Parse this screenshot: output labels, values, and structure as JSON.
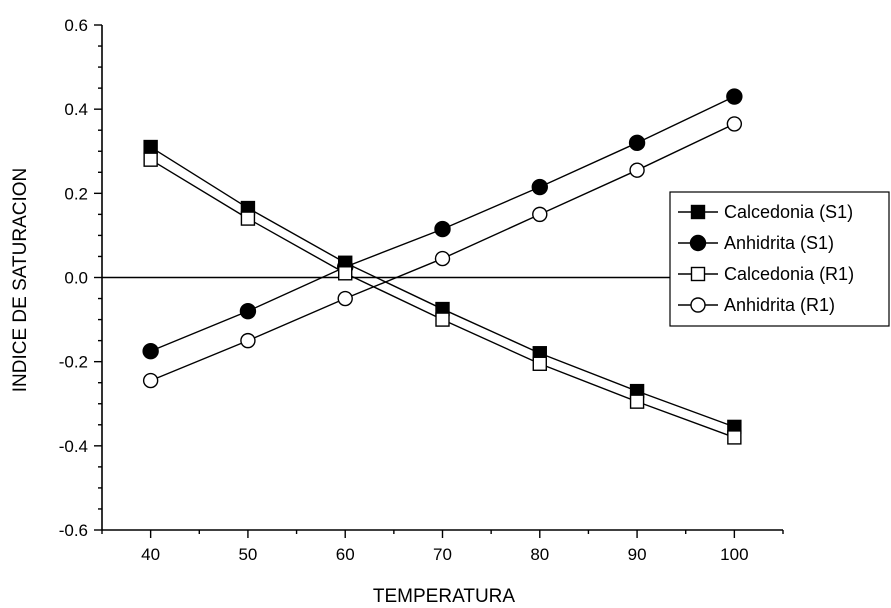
{
  "chart_data": {
    "type": "line",
    "xlabel": "TEMPERATURA",
    "ylabel": "INDICE DE SATURACION",
    "xlim": [
      35,
      105
    ],
    "ylim": [
      -0.6,
      0.6
    ],
    "x_ticks": [
      40,
      50,
      60,
      70,
      80,
      90,
      100
    ],
    "x_tick_labels": [
      "40",
      "50",
      "60",
      "70",
      "80",
      "90",
      "100"
    ],
    "y_ticks": [
      -0.6,
      -0.4,
      -0.2,
      0.0,
      0.2,
      0.4,
      0.6
    ],
    "y_tick_labels": [
      "-0.6",
      "-0.4",
      "-0.2",
      "0.0",
      "0.2",
      "0.4",
      "0.6"
    ],
    "reference_line_y": 0.0,
    "legend_position": "right",
    "x": [
      40,
      50,
      60,
      70,
      80,
      90,
      100
    ],
    "series": [
      {
        "name": "Calcedonia (S1)",
        "marker": "square",
        "filled": true,
        "values": [
          0.31,
          0.165,
          0.035,
          -0.075,
          -0.18,
          -0.27,
          -0.355
        ]
      },
      {
        "name": "Anhidrita (S1)",
        "marker": "circle",
        "filled": true,
        "values": [
          -0.175,
          -0.08,
          0.025,
          0.115,
          0.215,
          0.32,
          0.43
        ]
      },
      {
        "name": "Calcedonia (R1)",
        "marker": "square",
        "filled": false,
        "values": [
          0.28,
          0.14,
          0.01,
          -0.1,
          -0.205,
          -0.295,
          -0.38
        ]
      },
      {
        "name": "Anhidrita (R1)",
        "marker": "circle",
        "filled": false,
        "values": [
          -0.245,
          -0.15,
          -0.05,
          0.045,
          0.15,
          0.255,
          0.365
        ]
      }
    ]
  }
}
